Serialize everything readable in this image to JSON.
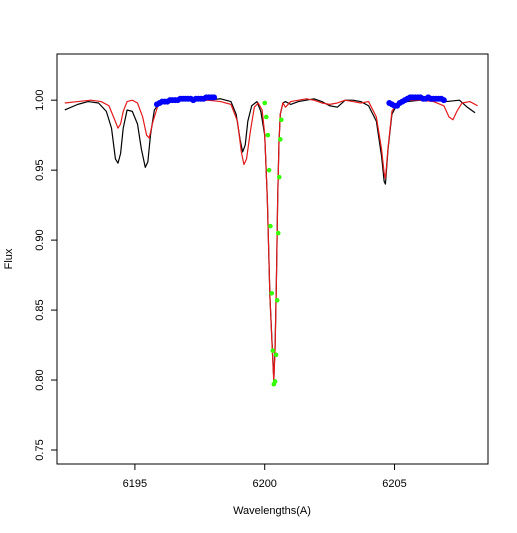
{
  "chart_data": {
    "type": "line",
    "title": "",
    "xlabel": "Wavelengths(A)",
    "ylabel": "Flux",
    "xlim": [
      6192.0,
      6208.6
    ],
    "ylim": [
      0.74,
      1.033
    ],
    "xticks": [
      6195,
      6200,
      6205
    ],
    "xtick_labels": [
      "6195",
      "6200",
      "6205"
    ],
    "yticks": [
      0.75,
      0.8,
      0.85,
      0.9,
      0.95,
      1.0
    ],
    "ytick_labels": [
      "0.75",
      "0.80",
      "0.85",
      "0.90",
      "0.95",
      "1.00"
    ],
    "grid": false,
    "legend": "none",
    "series": [
      {
        "color": "#000000",
        "kind": "line",
        "x": [
          6192.3,
          6192.8,
          6193.2,
          6193.6,
          6193.9,
          6194.1,
          6194.25,
          6194.35,
          6194.45,
          6194.55,
          6194.7,
          6194.9,
          6195.1,
          6195.25,
          6195.4,
          6195.5,
          6195.6,
          6195.75,
          6195.95,
          6196.3,
          6196.8,
          6197.3,
          6197.8,
          6198.3,
          6198.7,
          6198.9,
          6199.05,
          6199.15,
          6199.25,
          6199.35,
          6199.5,
          6199.7,
          6199.85,
          6200.0,
          6200.1,
          6200.2,
          6200.3,
          6200.35,
          6200.4,
          6200.45,
          6200.5,
          6200.55,
          6200.6,
          6200.7,
          6200.8,
          6201.0,
          6201.3,
          6201.6,
          6201.9,
          6202.2,
          6202.5,
          6202.8,
          6203.1,
          6203.4,
          6203.7,
          6204.0,
          6204.3,
          6204.5,
          6204.6,
          6204.65,
          6204.75,
          6204.9,
          6205.1,
          6205.5,
          6206.0,
          6206.5,
          6207.0,
          6207.5,
          6207.8,
          6208.1
        ],
        "y": [
          0.993,
          0.997,
          0.999,
          0.998,
          0.992,
          0.98,
          0.958,
          0.955,
          0.962,
          0.98,
          0.993,
          0.992,
          0.983,
          0.965,
          0.952,
          0.956,
          0.975,
          0.993,
          0.998,
          0.999,
          1.0,
          1.0,
          1.0,
          1.001,
          0.999,
          0.99,
          0.972,
          0.963,
          0.968,
          0.985,
          0.996,
          0.999,
          0.992,
          0.975,
          0.93,
          0.86,
          0.82,
          0.8,
          0.825,
          0.87,
          0.93,
          0.97,
          0.99,
          0.998,
          0.999,
          0.997,
          0.999,
          1.0,
          1.001,
          0.999,
          0.996,
          0.995,
          1.0,
          1.0,
          0.999,
          0.996,
          0.985,
          0.96,
          0.942,
          0.94,
          0.965,
          0.99,
          0.997,
          0.999,
          1.0,
          1.0,
          0.999,
          1.0,
          0.995,
          0.991
        ]
      },
      {
        "color": "#e31a1c",
        "kind": "line",
        "x": [
          6192.3,
          6192.8,
          6193.3,
          6193.7,
          6194.0,
          6194.2,
          6194.35,
          6194.45,
          6194.55,
          6194.7,
          6194.9,
          6195.1,
          6195.3,
          6195.45,
          6195.55,
          6195.7,
          6195.9,
          6196.3,
          6196.8,
          6197.3,
          6197.8,
          6198.3,
          6198.7,
          6198.95,
          6199.1,
          6199.2,
          6199.3,
          6199.45,
          6199.6,
          6199.75,
          6199.9,
          6200.0,
          6200.1,
          6200.2,
          6200.3,
          6200.35,
          6200.4,
          6200.45,
          6200.5,
          6200.55,
          6200.6,
          6200.7,
          6200.8,
          6201.0,
          6201.3,
          6201.6,
          6201.9,
          6202.2,
          6202.5,
          6202.8,
          6203.1,
          6203.4,
          6203.7,
          6204.0,
          6204.3,
          6204.5,
          6204.6,
          6204.65,
          6204.75,
          6204.9,
          6205.1,
          6205.5,
          6206.0,
          6206.5,
          6206.9,
          6207.1,
          6207.25,
          6207.4,
          6207.6,
          6207.9,
          6208.2
        ],
        "y": [
          0.998,
          0.999,
          1.0,
          0.999,
          0.996,
          0.987,
          0.98,
          0.983,
          0.992,
          0.999,
          1.0,
          0.998,
          0.988,
          0.975,
          0.973,
          0.985,
          0.997,
          0.999,
          1.0,
          1.0,
          1.0,
          0.999,
          0.997,
          0.985,
          0.963,
          0.954,
          0.958,
          0.978,
          0.995,
          0.998,
          0.993,
          0.976,
          0.93,
          0.86,
          0.818,
          0.799,
          0.822,
          0.87,
          0.93,
          0.97,
          0.99,
          0.998,
          0.995,
          0.999,
          1.0,
          1.001,
          1.0,
          0.998,
          0.997,
          0.998,
          1.0,
          0.999,
          0.998,
          0.999,
          0.988,
          0.965,
          0.948,
          0.944,
          0.966,
          0.992,
          0.998,
          1.0,
          1.0,
          0.999,
          0.996,
          0.988,
          0.986,
          0.992,
          0.998,
          0.999,
          0.996
        ]
      },
      {
        "color": "#0000ff",
        "kind": "points",
        "x": [
          6195.85,
          6195.95,
          6196.05,
          6196.15,
          6196.25,
          6196.35,
          6196.45,
          6196.55,
          6196.65,
          6196.75,
          6196.85,
          6196.95,
          6197.05,
          6197.15,
          6197.25,
          6197.35,
          6197.45,
          6197.55,
          6197.65,
          6197.75,
          6197.85,
          6197.95,
          6198.05,
          6204.8,
          6204.9,
          6205.0,
          6205.1,
          6205.2,
          6205.3,
          6205.4,
          6205.5,
          6205.6,
          6205.7,
          6205.8,
          6205.9,
          6206.0,
          6206.1,
          6206.2,
          6206.3,
          6206.4,
          6206.5,
          6206.6,
          6206.7,
          6206.8,
          6206.9
        ],
        "y": [
          0.997,
          0.998,
          0.999,
          0.999,
          0.999,
          1.0,
          1.0,
          1.0,
          1.0,
          1.001,
          1.001,
          1.001,
          1.001,
          1.001,
          1.0,
          1.001,
          1.001,
          1.001,
          1.001,
          1.002,
          1.002,
          1.002,
          1.002,
          0.998,
          0.997,
          0.996,
          0.996,
          0.998,
          0.999,
          1.0,
          1.001,
          1.002,
          1.002,
          1.002,
          1.002,
          1.002,
          1.001,
          1.001,
          1.002,
          1.001,
          1.001,
          1.001,
          1.001,
          1.001,
          1.0
        ]
      },
      {
        "color": "#33ff00",
        "kind": "points",
        "x": [
          6200.0,
          6200.06,
          6200.12,
          6200.17,
          6200.22,
          6200.27,
          6200.31,
          6200.35,
          6200.4,
          6200.44,
          6200.48,
          6200.52,
          6200.56,
          6200.6,
          6200.64
        ],
        "y": [
          0.998,
          0.988,
          0.975,
          0.95,
          0.91,
          0.862,
          0.821,
          0.797,
          0.799,
          0.818,
          0.857,
          0.905,
          0.945,
          0.972,
          0.986
        ]
      }
    ]
  }
}
